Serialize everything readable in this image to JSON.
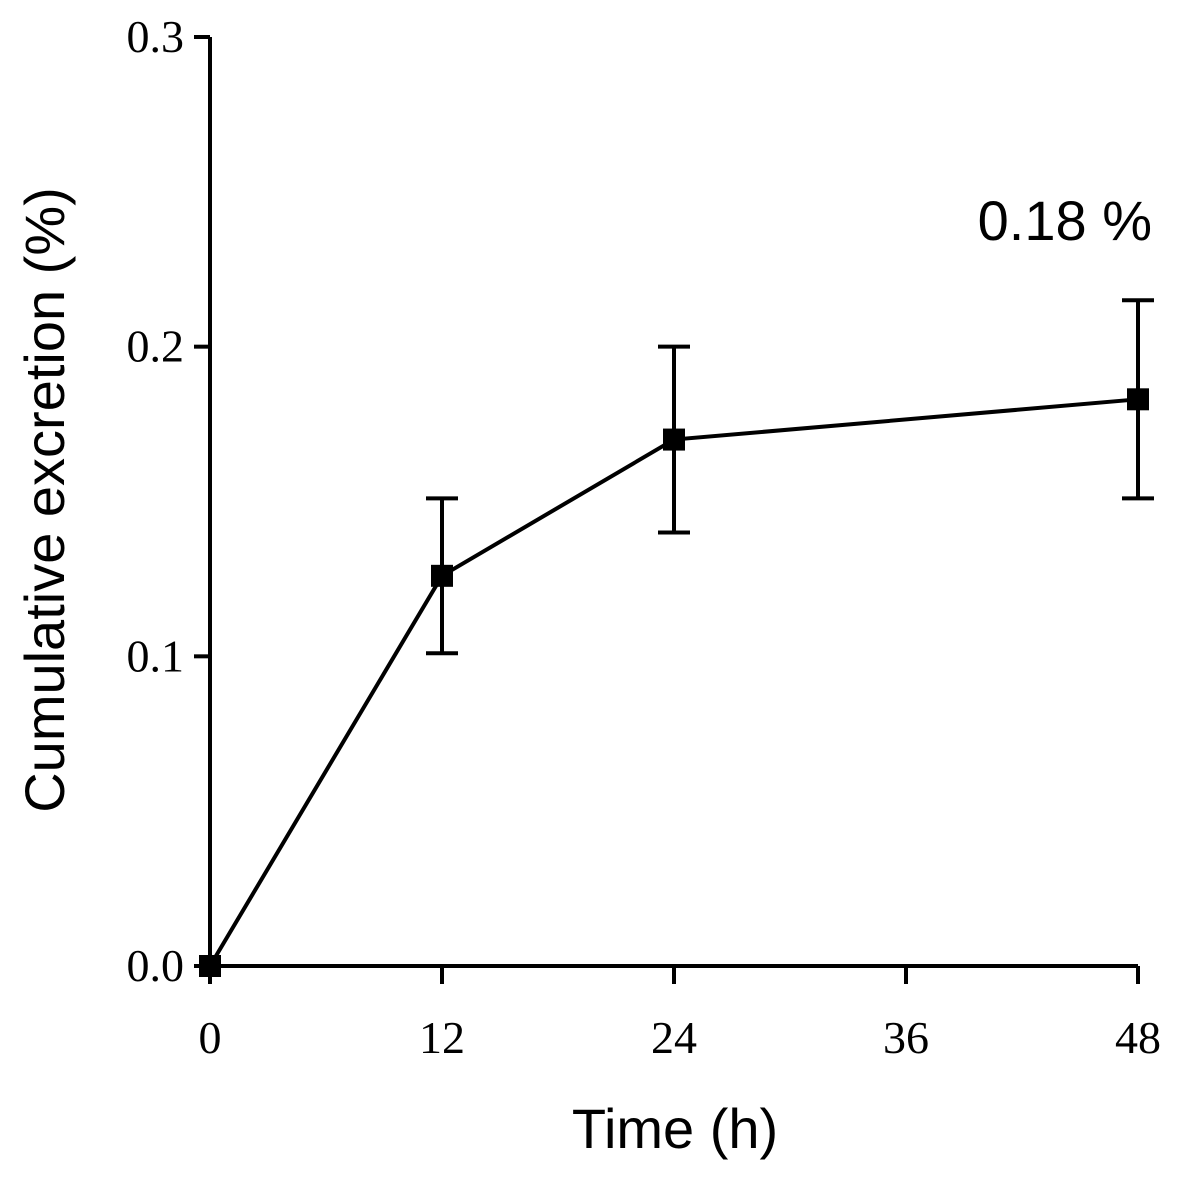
{
  "chart_data": {
    "type": "line",
    "title": "",
    "xlabel": "Time (h)",
    "ylabel": "Cumulative excretion (%)",
    "xlim": [
      0,
      48
    ],
    "ylim": [
      0.0,
      0.3
    ],
    "xticks": [
      0,
      12,
      24,
      36,
      48
    ],
    "xtick_labels": [
      "0",
      "12",
      "24",
      "36",
      "48"
    ],
    "yticks": [
      0.0,
      0.1,
      0.2,
      0.3
    ],
    "ytick_labels": [
      "0.0",
      "0.1",
      "0.2",
      "0.3"
    ],
    "grid": false,
    "series": [
      {
        "name": "Cumulative excretion",
        "color": "#000000",
        "marker": "square",
        "x": [
          0,
          12,
          24,
          48
        ],
        "values": [
          0.0,
          0.126,
          0.17,
          0.183
        ],
        "error": [
          0.0,
          0.025,
          0.03,
          0.032
        ]
      }
    ],
    "annotations": [
      {
        "text": "0.18 %",
        "x": 48,
        "y": 0.24
      }
    ]
  }
}
